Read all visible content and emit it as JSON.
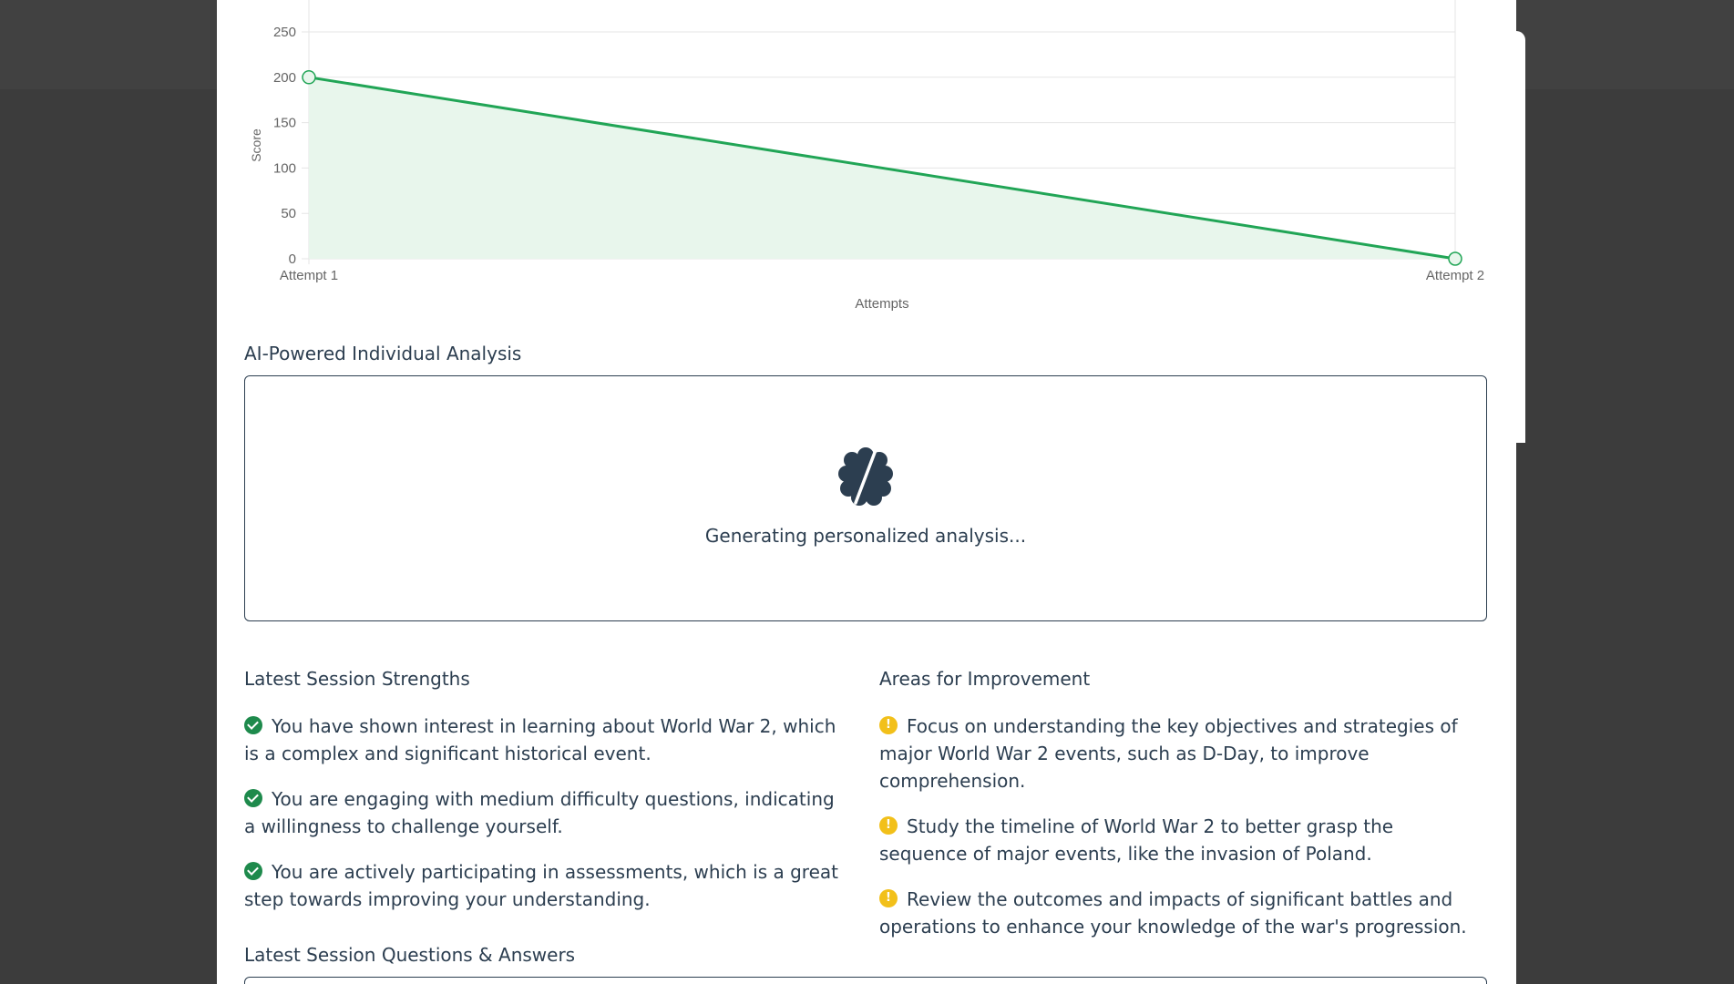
{
  "chart_data": {
    "type": "area",
    "categories": [
      "Attempt 1",
      "Attempt 2"
    ],
    "series": [
      {
        "values": [
          200,
          0
        ]
      }
    ],
    "xlabel": "Attempts",
    "ylabel": "Score",
    "ylim": [
      0,
      250
    ],
    "yticks": [
      "0",
      "50",
      "100",
      "150",
      "200",
      "250"
    ],
    "grid": true,
    "colors": {
      "line": "#21a556",
      "fill": "#e8f6ec"
    }
  },
  "analysis": {
    "title": "AI-Powered Individual Analysis",
    "icon": "brain-icon",
    "message": "Generating personalized analysis..."
  },
  "strengths": {
    "title": "Latest Session Strengths",
    "items": [
      "You have shown interest in learning about World War 2, which is a complex and significant historical event.",
      "You are engaging with medium difficulty questions, indicating a willingness to challenge yourself.",
      "You are actively participating in assessments, which is a great step towards improving your understanding."
    ]
  },
  "improvements": {
    "title": "Areas for Improvement",
    "items": [
      "Focus on understanding the key objectives and strategies of major World War 2 events, such as D-Day, to improve comprehension.",
      "Study the timeline of World War 2 to better grasp the sequence of major events, like the invasion of Poland.",
      "Review the outcomes and impacts of significant battles and operations to enhance your knowledge of the war's progression."
    ]
  },
  "qa": {
    "title": "Latest Session Questions & Answers"
  },
  "colors": {
    "success": "#1e8a4c",
    "warning": "#f2c01a",
    "text": "#2c3e50"
  }
}
